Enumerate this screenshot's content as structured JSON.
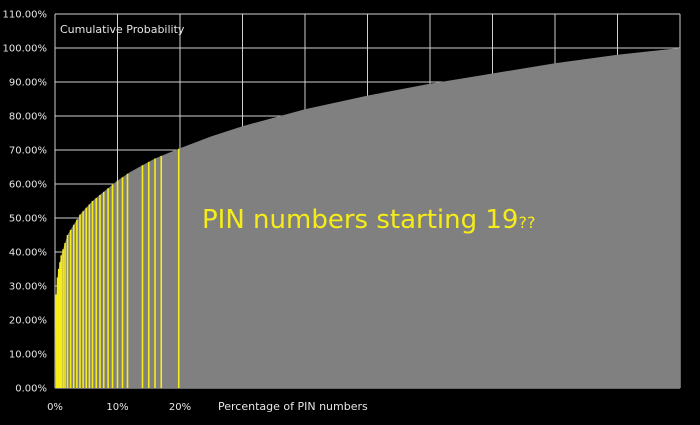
{
  "chart_data": {
    "type": "area",
    "title": "",
    "ylabel": "Cumulative Probability",
    "xlabel": "Percentage of PIN numbers",
    "ylim": [
      0,
      110
    ],
    "xlim": [
      0,
      100
    ],
    "grid": true,
    "y_ticks": [
      0,
      10,
      20,
      30,
      40,
      50,
      60,
      70,
      80,
      90,
      100,
      110
    ],
    "y_tick_labels": [
      "0.00%",
      "10.00%",
      "20.00%",
      "30.00%",
      "40.00%",
      "50.00%",
      "60.00%",
      "70.00%",
      "80.00%",
      "90.00%",
      "100.00%",
      "110.00%"
    ],
    "x_tick_labels": [
      "0%",
      "10%",
      "20%"
    ],
    "x_tick_values": [
      0,
      10,
      20
    ],
    "x_gridlines": [
      0,
      10,
      20,
      30,
      40,
      50,
      60,
      70,
      80,
      90,
      100
    ],
    "series": [
      {
        "color": "#808080",
        "x": [
          0,
          0.1,
          0.3,
          0.5,
          1,
          1.5,
          2,
          3,
          4,
          5,
          6,
          7,
          8,
          9,
          10,
          12,
          14,
          16,
          18,
          20,
          25,
          30,
          40,
          50,
          60,
          70,
          80,
          90,
          100
        ],
        "y": [
          0,
          24,
          31,
          34,
          39,
          42,
          45,
          48,
          51,
          53,
          55,
          56.5,
          58,
          59.5,
          61,
          63.5,
          65.5,
          67.5,
          69,
          70.5,
          74,
          77,
          82,
          86,
          89.5,
          92.5,
          95.5,
          98,
          100
        ]
      }
    ],
    "highlight_lines": {
      "color": "#f5ec1a",
      "x": [
        0.2,
        0.4,
        0.6,
        0.8,
        1.0,
        1.3,
        1.6,
        2.0,
        2.5,
        3.0,
        3.5,
        4.0,
        4.5,
        5.0,
        5.5,
        6.0,
        6.6,
        7.2,
        7.8,
        8.5,
        9.2,
        10.0,
        10.8,
        11.6,
        14.0,
        15.0,
        16.0,
        17.0,
        19.8
      ]
    },
    "annotations": [
      {
        "text": "PIN numbers starting 19",
        "suffix": "??",
        "color": "#f5ec1a"
      }
    ]
  }
}
